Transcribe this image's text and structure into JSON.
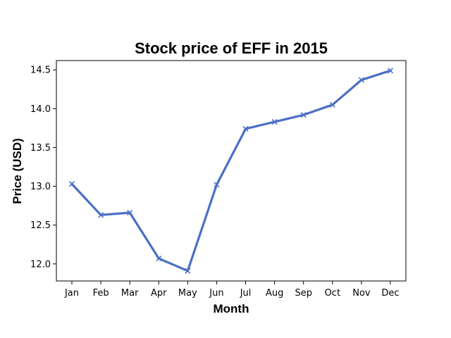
{
  "chart_data": {
    "type": "line",
    "title": "Stock price of EFF in 2015",
    "xlabel": "Month",
    "ylabel": "Price (USD)",
    "categories": [
      "Jan",
      "Feb",
      "Mar",
      "Apr",
      "May",
      "Jun",
      "Jul",
      "Aug",
      "Sep",
      "Oct",
      "Nov",
      "Dec"
    ],
    "series": [
      {
        "values": [
          13.03,
          12.63,
          12.66,
          12.07,
          11.91,
          13.02,
          13.74,
          13.83,
          13.92,
          14.05,
          14.37,
          14.49
        ],
        "color": "#4a6fc6",
        "marker": "x"
      }
    ],
    "ylim": [
      11.78,
      14.62
    ],
    "yticks": [
      "12.0",
      "12.5",
      "13.0",
      "13.5",
      "14.0",
      "14.5"
    ],
    "grid": false,
    "legend": "none"
  }
}
